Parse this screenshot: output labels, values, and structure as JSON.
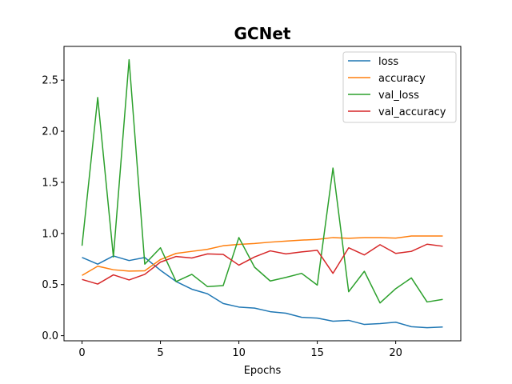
{
  "chart_data": {
    "type": "line",
    "title": "GCNet",
    "xlabel": "Epochs",
    "ylabel": "",
    "xlim": [
      -1.15,
      24.15
    ],
    "ylim": [
      -0.05,
      2.83
    ],
    "xticks": [
      0,
      5,
      10,
      15,
      20
    ],
    "yticks": [
      0.0,
      0.5,
      1.0,
      1.5,
      2.0,
      2.5
    ],
    "xtick_labels": [
      "0",
      "5",
      "10",
      "15",
      "20"
    ],
    "ytick_labels": [
      "0.0",
      "0.5",
      "1.0",
      "1.5",
      "2.0",
      "2.5"
    ],
    "grid": false,
    "legend_position": "upper-right",
    "x": [
      0,
      1,
      2,
      3,
      4,
      5,
      6,
      7,
      8,
      9,
      10,
      11,
      12,
      13,
      14,
      15,
      16,
      17,
      18,
      19,
      20,
      21,
      22,
      23
    ],
    "series": [
      {
        "name": "loss",
        "color": "#1f77b4",
        "values": [
          0.765,
          0.7,
          0.78,
          0.735,
          0.765,
          0.64,
          0.53,
          0.455,
          0.41,
          0.315,
          0.28,
          0.27,
          0.235,
          0.22,
          0.18,
          0.172,
          0.142,
          0.15,
          0.11,
          0.118,
          0.132,
          0.088,
          0.078,
          0.085
        ]
      },
      {
        "name": "accuracy",
        "color": "#ff7f0e",
        "values": [
          0.59,
          0.68,
          0.645,
          0.632,
          0.635,
          0.745,
          0.805,
          0.825,
          0.845,
          0.88,
          0.893,
          0.902,
          0.915,
          0.925,
          0.935,
          0.942,
          0.96,
          0.953,
          0.96,
          0.96,
          0.955,
          0.975,
          0.975,
          0.975
        ]
      },
      {
        "name": "val_loss",
        "color": "#2ca02c",
        "values": [
          0.88,
          2.33,
          0.77,
          2.7,
          0.7,
          0.86,
          0.53,
          0.6,
          0.48,
          0.49,
          0.96,
          0.67,
          0.535,
          0.57,
          0.61,
          0.495,
          1.64,
          0.43,
          0.63,
          0.32,
          0.46,
          0.565,
          0.33,
          0.355
        ]
      },
      {
        "name": "val_accuracy",
        "color": "#d62728",
        "values": [
          0.55,
          0.505,
          0.595,
          0.545,
          0.6,
          0.72,
          0.775,
          0.76,
          0.8,
          0.795,
          0.69,
          0.77,
          0.83,
          0.8,
          0.82,
          0.835,
          0.61,
          0.86,
          0.79,
          0.89,
          0.805,
          0.825,
          0.895,
          0.875
        ]
      }
    ]
  }
}
